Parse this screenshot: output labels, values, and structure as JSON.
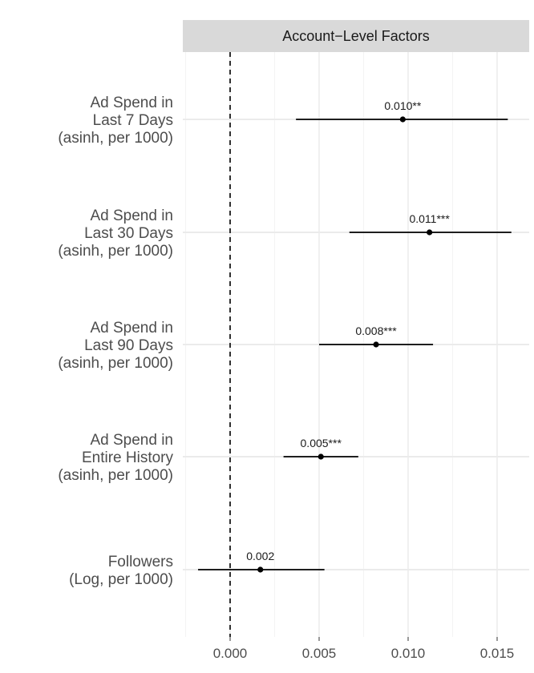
{
  "chart_data": {
    "type": "forest",
    "panel_title": "Account−Level Factors",
    "xlim": [
      -0.0025,
      0.0167
    ],
    "x_ticks": [
      {
        "value": 0.0,
        "label": "0.000"
      },
      {
        "value": 0.005,
        "label": "0.005"
      },
      {
        "value": 0.01,
        "label": "0.010"
      },
      {
        "value": 0.015,
        "label": "0.015"
      }
    ],
    "reference_line": 0,
    "grid": true,
    "colors": {
      "strip": "#d9d9d9",
      "grid_major": "#ebebeb",
      "grid_minor": "#f4f4f4",
      "point": "#000000"
    },
    "rows": [
      {
        "label_lines": [
          "Ad Spend in",
          "Last 7 Days",
          "(asinh, per 1000)"
        ],
        "estimate": 0.0097,
        "lower": 0.0037,
        "upper": 0.0156,
        "label": "0.010**"
      },
      {
        "label_lines": [
          "Ad Spend in",
          "Last 30 Days",
          "(asinh, per 1000)"
        ],
        "estimate": 0.0112,
        "lower": 0.0067,
        "upper": 0.0158,
        "label": "0.011***"
      },
      {
        "label_lines": [
          "Ad Spend in",
          "Last 90 Days",
          "(asinh, per 1000)"
        ],
        "estimate": 0.0082,
        "lower": 0.005,
        "upper": 0.0114,
        "label": "0.008***"
      },
      {
        "label_lines": [
          "Ad Spend in",
          "Entire History",
          "(asinh, per 1000)"
        ],
        "estimate": 0.0051,
        "lower": 0.003,
        "upper": 0.0072,
        "label": "0.005***"
      },
      {
        "label_lines": [
          "Followers",
          "(Log, per 1000)"
        ],
        "estimate": 0.0017,
        "lower": -0.0018,
        "upper": 0.0053,
        "label": "0.002"
      }
    ]
  }
}
